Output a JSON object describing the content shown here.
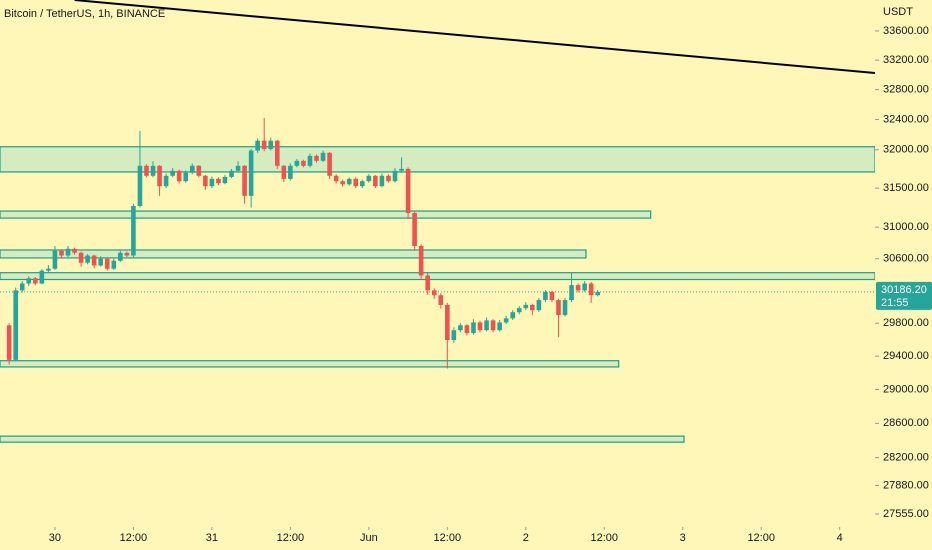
{
  "chart_data": {
    "type": "candlestick",
    "title": "Bitcoin / TetherUS, 1h, BINANCE",
    "y_axis_label": "USDT",
    "log": true,
    "background": "#fef7b8",
    "up_color": "#26a69a",
    "down_color": "#ef5350",
    "zone_color": "#d4ecbf",
    "zone_border": "#1e9c8c",
    "trend_color": "#000000",
    "xlim": [
      -8.4,
      125.4
    ],
    "ylim": [
      27408,
      34030
    ],
    "xticks": [
      {
        "value": 0,
        "label": "30"
      },
      {
        "value": 12,
        "label": "12:00"
      },
      {
        "value": 24,
        "label": "31"
      },
      {
        "value": 36,
        "label": "12:00"
      },
      {
        "value": 48,
        "label": "Jun"
      },
      {
        "value": 60,
        "label": "12:00"
      },
      {
        "value": 72,
        "label": "2"
      },
      {
        "value": 84,
        "label": "12:00"
      },
      {
        "value": 96,
        "label": "3"
      },
      {
        "value": 108,
        "label": "12:00"
      },
      {
        "value": 120,
        "label": "4"
      }
    ],
    "yticks": [
      {
        "value": 33600,
        "label": "33600.00"
      },
      {
        "value": 33200,
        "label": "33200.00"
      },
      {
        "value": 32800,
        "label": "32800.00"
      },
      {
        "value": 32400,
        "label": "32400.00"
      },
      {
        "value": 32000,
        "label": "32000.00"
      },
      {
        "value": 31500,
        "label": "31500.00"
      },
      {
        "value": 31000,
        "label": "31000.00"
      },
      {
        "value": 30600,
        "label": "30600.00"
      },
      {
        "value": 29800,
        "label": "29800.00"
      },
      {
        "value": 29400,
        "label": "29400.00"
      },
      {
        "value": 29000,
        "label": "29000.00"
      },
      {
        "value": 28600,
        "label": "28600.00"
      },
      {
        "value": 28200,
        "label": "28200.00"
      },
      {
        "value": 27880,
        "label": "27880.00"
      },
      {
        "value": 27555,
        "label": "27555.00"
      }
    ],
    "x": [
      -7,
      -6,
      -5,
      -4,
      -3,
      -2,
      -1,
      0,
      1,
      2,
      3,
      4,
      5,
      6,
      7,
      8,
      9,
      10,
      11,
      12,
      13,
      14,
      15,
      16,
      17,
      18,
      19,
      20,
      21,
      22,
      23,
      24,
      25,
      26,
      27,
      28,
      29,
      30,
      31,
      32,
      33,
      34,
      35,
      36,
      37,
      38,
      39,
      40,
      41,
      42,
      43,
      44,
      45,
      46,
      47,
      48,
      49,
      50,
      51,
      52,
      53,
      54,
      55,
      56,
      57,
      58,
      59,
      60,
      61,
      62,
      63,
      64,
      65,
      66,
      67,
      68,
      69,
      70,
      71,
      72,
      73,
      74,
      75,
      76,
      77,
      78,
      79,
      80,
      81,
      82,
      83
    ],
    "open": [
      29775,
      29355,
      30205,
      30290,
      30355,
      30290,
      30450,
      30475,
      30700,
      30640,
      30725,
      30675,
      30550,
      30640,
      30515,
      30600,
      30475,
      30575,
      30675,
      30640,
      31270,
      31790,
      31660,
      31790,
      31525,
      31660,
      31725,
      31590,
      31700,
      31790,
      31660,
      31525,
      31620,
      31565,
      31645,
      31725,
      31790,
      31400,
      31990,
      32120,
      32010,
      32120,
      31790,
      31620,
      31790,
      31855,
      31790,
      31920,
      31855,
      31960,
      31660,
      31590,
      31550,
      31620,
      31525,
      31590,
      31660,
      31525,
      31660,
      31590,
      31725,
      31750,
      31180,
      30760,
      30390,
      30205,
      30145,
      30025,
      29595,
      29715,
      29775,
      29680,
      29810,
      29715,
      29835,
      29715,
      29810,
      29860,
      29935,
      29985,
      30025,
      29960,
      30085,
      30185,
      30085,
      29900,
      30085,
      30270,
      30205,
      30290,
      30145
    ],
    "high": [
      29800,
      30240,
      30320,
      30380,
      30370,
      30470,
      30520,
      30760,
      30720,
      30760,
      30740,
      30690,
      30660,
      30650,
      30630,
      30610,
      30600,
      30700,
      30690,
      31300,
      32250,
      31810,
      31850,
      31800,
      31690,
      31760,
      31740,
      31730,
      31820,
      31800,
      31670,
      31650,
      31640,
      31670,
      31750,
      31850,
      31800,
      32010,
      32150,
      32420,
      32160,
      32130,
      31800,
      31820,
      31880,
      31870,
      31950,
      31940,
      31990,
      31970,
      31680,
      31610,
      31640,
      31640,
      31610,
      31680,
      31670,
      31690,
      31680,
      31760,
      31900,
      31770,
      31200,
      30780,
      30420,
      30230,
      30170,
      30050,
      29750,
      29800,
      29790,
      29850,
      29830,
      29870,
      29850,
      29840,
      29890,
      29960,
      30010,
      30060,
      30040,
      30110,
      30210,
      30200,
      30100,
      30110,
      30420,
      30290,
      30320,
      30310,
      30210
    ],
    "low": [
      29300,
      29340,
      30180,
      30260,
      30270,
      30280,
      30420,
      30460,
      30600,
      30620,
      30650,
      30500,
      30530,
      30480,
      30500,
      30450,
      30460,
      30560,
      30620,
      30620,
      31250,
      31640,
      31640,
      31400,
      31500,
      31640,
      31560,
      31570,
      31680,
      31640,
      31480,
      31500,
      31540,
      31550,
      31630,
      31700,
      31300,
      31250,
      31960,
      31980,
      31990,
      31750,
      31580,
      31600,
      31770,
      31770,
      31770,
      31830,
      31840,
      31620,
      31560,
      31520,
      31530,
      31500,
      31500,
      31570,
      31500,
      31510,
      31570,
      31570,
      31700,
      31100,
      30700,
      30350,
      30150,
      30100,
      29980,
      29250,
      29560,
      29690,
      29650,
      29660,
      29690,
      29700,
      29690,
      29700,
      29790,
      29840,
      29910,
      29960,
      29900,
      29940,
      30060,
      30060,
      29630,
      29880,
      30060,
      30180,
      30190,
      30050,
      30130
    ],
    "close": [
      29355,
      30205,
      30290,
      30355,
      30290,
      30450,
      30475,
      30700,
      30640,
      30725,
      30675,
      30550,
      30640,
      30515,
      30600,
      30475,
      30575,
      30675,
      30640,
      31270,
      31790,
      31660,
      31790,
      31525,
      31660,
      31725,
      31590,
      31700,
      31790,
      31660,
      31525,
      31620,
      31565,
      31645,
      31725,
      31790,
      31400,
      31990,
      32120,
      32010,
      32120,
      31790,
      31620,
      31790,
      31855,
      31790,
      31920,
      31855,
      31960,
      31660,
      31590,
      31550,
      31620,
      31525,
      31590,
      31660,
      31525,
      31660,
      31590,
      31725,
      31750,
      31180,
      30760,
      30390,
      30205,
      30145,
      30025,
      29595,
      29715,
      29775,
      29680,
      29810,
      29715,
      29835,
      29715,
      29810,
      29860,
      29935,
      29985,
      30025,
      29960,
      30085,
      30185,
      30085,
      29900,
      30085,
      30270,
      30205,
      30290,
      30145,
      30186.2
    ],
    "zones": [
      {
        "top": 32040,
        "bottom": 31710,
        "x": [
          -8.4,
          125.4
        ]
      },
      {
        "top": 31205,
        "bottom": 31115,
        "x": [
          -8.4,
          91.1
        ]
      },
      {
        "top": 30710,
        "bottom": 30610,
        "x": [
          -8.4,
          81.2
        ]
      },
      {
        "top": 30425,
        "bottom": 30340,
        "x": [
          -8.4,
          125.4
        ]
      },
      {
        "top": 29345,
        "bottom": 29270,
        "x": [
          -8.4,
          86.2
        ]
      },
      {
        "top": 28450,
        "bottom": 28380,
        "x": [
          -8.4,
          96.2
        ]
      }
    ],
    "trend_line": {
      "x": [
        3,
        125.4
      ],
      "y": [
        34030,
        33025
      ]
    },
    "last_price": {
      "value": 30186.2,
      "label": "30186.20"
    },
    "countdown": "21:55"
  }
}
